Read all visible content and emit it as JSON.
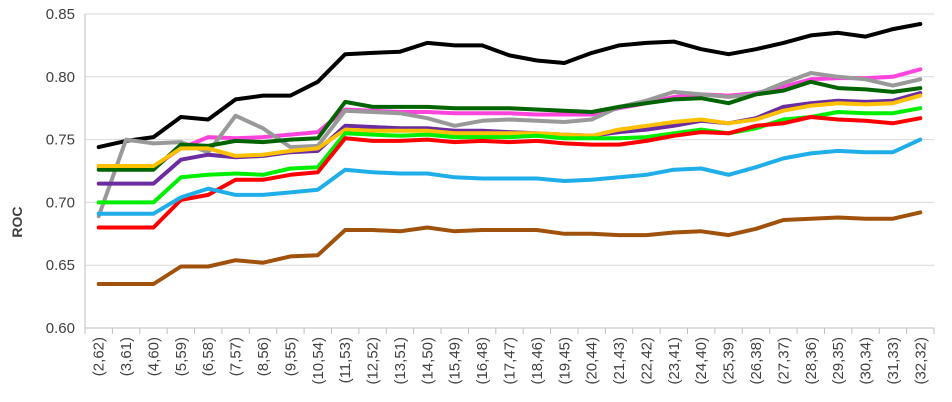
{
  "chart_data": {
    "type": "line",
    "title": "",
    "xlabel": "",
    "ylabel": "ROC",
    "ylim": [
      0.6,
      0.85
    ],
    "yticks": [
      "0.60",
      "0.65",
      "0.70",
      "0.75",
      "0.80",
      "0.85"
    ],
    "grid": "horizontal",
    "legend": "none",
    "categories": [
      "(2,62)",
      "(3,61)",
      "(4,60)",
      "(5,59)",
      "(6,58)",
      "(7,57)",
      "(8,56)",
      "(9,55)",
      "(10,54)",
      "(11,53)",
      "(12,52)",
      "(13,51)",
      "(14,50)",
      "(15,49)",
      "(16,48)",
      "(17,47)",
      "(18,46)",
      "(19,45)",
      "(20,44)",
      "(21,43)",
      "(22,42)",
      "(23,41)",
      "(24,40)",
      "(25,39)",
      "(26,38)",
      "(27,37)",
      "(28,36)",
      "(29,35)",
      "(30,34)",
      "(31,33)",
      "(32,32)"
    ],
    "series": [
      {
        "color": "#000000",
        "values": [
          0.744,
          0.749,
          0.752,
          0.768,
          0.766,
          0.782,
          0.785,
          0.785,
          0.796,
          0.818,
          0.819,
          0.82,
          0.827,
          0.825,
          0.825,
          0.817,
          0.813,
          0.811,
          0.819,
          0.825,
          0.827,
          0.828,
          0.822,
          0.818,
          0.822,
          0.827,
          0.833,
          0.835,
          0.832,
          0.838,
          0.842
        ]
      },
      {
        "color": "#ff44dd",
        "values": [
          0.728,
          0.728,
          0.728,
          0.743,
          0.752,
          0.751,
          0.752,
          0.754,
          0.756,
          0.774,
          0.773,
          0.772,
          0.772,
          0.771,
          0.771,
          0.771,
          0.77,
          0.77,
          0.77,
          0.775,
          0.779,
          0.784,
          0.786,
          0.785,
          0.787,
          0.792,
          0.798,
          0.799,
          0.799,
          0.8,
          0.806
        ]
      },
      {
        "color": "#999999",
        "values": [
          0.689,
          0.75,
          0.747,
          0.748,
          0.74,
          0.769,
          0.759,
          0.744,
          0.745,
          0.773,
          0.772,
          0.771,
          0.767,
          0.761,
          0.765,
          0.766,
          0.765,
          0.764,
          0.766,
          0.776,
          0.781,
          0.788,
          0.786,
          0.784,
          0.786,
          0.795,
          0.803,
          0.8,
          0.798,
          0.793,
          0.798
        ]
      },
      {
        "color": "#006400",
        "values": [
          0.726,
          0.726,
          0.726,
          0.746,
          0.745,
          0.749,
          0.748,
          0.75,
          0.751,
          0.78,
          0.776,
          0.776,
          0.776,
          0.775,
          0.775,
          0.775,
          0.774,
          0.773,
          0.772,
          0.776,
          0.779,
          0.782,
          0.783,
          0.779,
          0.786,
          0.789,
          0.796,
          0.791,
          0.79,
          0.788,
          0.791
        ]
      },
      {
        "color": "#6a2ca0",
        "values": [
          0.715,
          0.715,
          0.715,
          0.734,
          0.738,
          0.736,
          0.737,
          0.74,
          0.741,
          0.761,
          0.76,
          0.759,
          0.759,
          0.757,
          0.757,
          0.756,
          0.755,
          0.754,
          0.753,
          0.756,
          0.758,
          0.761,
          0.765,
          0.763,
          0.767,
          0.776,
          0.779,
          0.781,
          0.78,
          0.781,
          0.787
        ]
      },
      {
        "color": "#ffc000",
        "values": [
          0.729,
          0.729,
          0.729,
          0.743,
          0.743,
          0.737,
          0.738,
          0.741,
          0.743,
          0.758,
          0.757,
          0.757,
          0.757,
          0.755,
          0.755,
          0.755,
          0.755,
          0.754,
          0.753,
          0.758,
          0.761,
          0.764,
          0.766,
          0.763,
          0.766,
          0.773,
          0.777,
          0.779,
          0.778,
          0.779,
          0.785
        ]
      },
      {
        "color": "#00ee00",
        "values": [
          0.7,
          0.7,
          0.7,
          0.72,
          0.722,
          0.723,
          0.722,
          0.727,
          0.728,
          0.755,
          0.754,
          0.753,
          0.754,
          0.752,
          0.752,
          0.752,
          0.753,
          0.751,
          0.751,
          0.751,
          0.752,
          0.755,
          0.758,
          0.755,
          0.759,
          0.766,
          0.768,
          0.772,
          0.771,
          0.771,
          0.775
        ]
      },
      {
        "color": "#ff0000",
        "values": [
          0.68,
          0.68,
          0.68,
          0.702,
          0.706,
          0.718,
          0.718,
          0.722,
          0.724,
          0.751,
          0.749,
          0.749,
          0.75,
          0.748,
          0.749,
          0.748,
          0.749,
          0.747,
          0.746,
          0.746,
          0.749,
          0.753,
          0.756,
          0.755,
          0.761,
          0.763,
          0.768,
          0.766,
          0.765,
          0.763,
          0.767
        ]
      },
      {
        "color": "#1faee9",
        "values": [
          0.691,
          0.691,
          0.691,
          0.704,
          0.711,
          0.706,
          0.706,
          0.708,
          0.71,
          0.726,
          0.724,
          0.723,
          0.723,
          0.72,
          0.719,
          0.719,
          0.719,
          0.717,
          0.718,
          0.72,
          0.722,
          0.726,
          0.727,
          0.722,
          0.728,
          0.735,
          0.739,
          0.741,
          0.74,
          0.74,
          0.75
        ]
      },
      {
        "color": "#a0520c",
        "values": [
          0.635,
          0.635,
          0.635,
          0.649,
          0.649,
          0.654,
          0.652,
          0.657,
          0.658,
          0.678,
          0.678,
          0.677,
          0.68,
          0.677,
          0.678,
          0.678,
          0.678,
          0.675,
          0.675,
          0.674,
          0.674,
          0.676,
          0.677,
          0.674,
          0.679,
          0.686,
          0.687,
          0.688,
          0.687,
          0.687,
          0.692
        ]
      }
    ]
  }
}
